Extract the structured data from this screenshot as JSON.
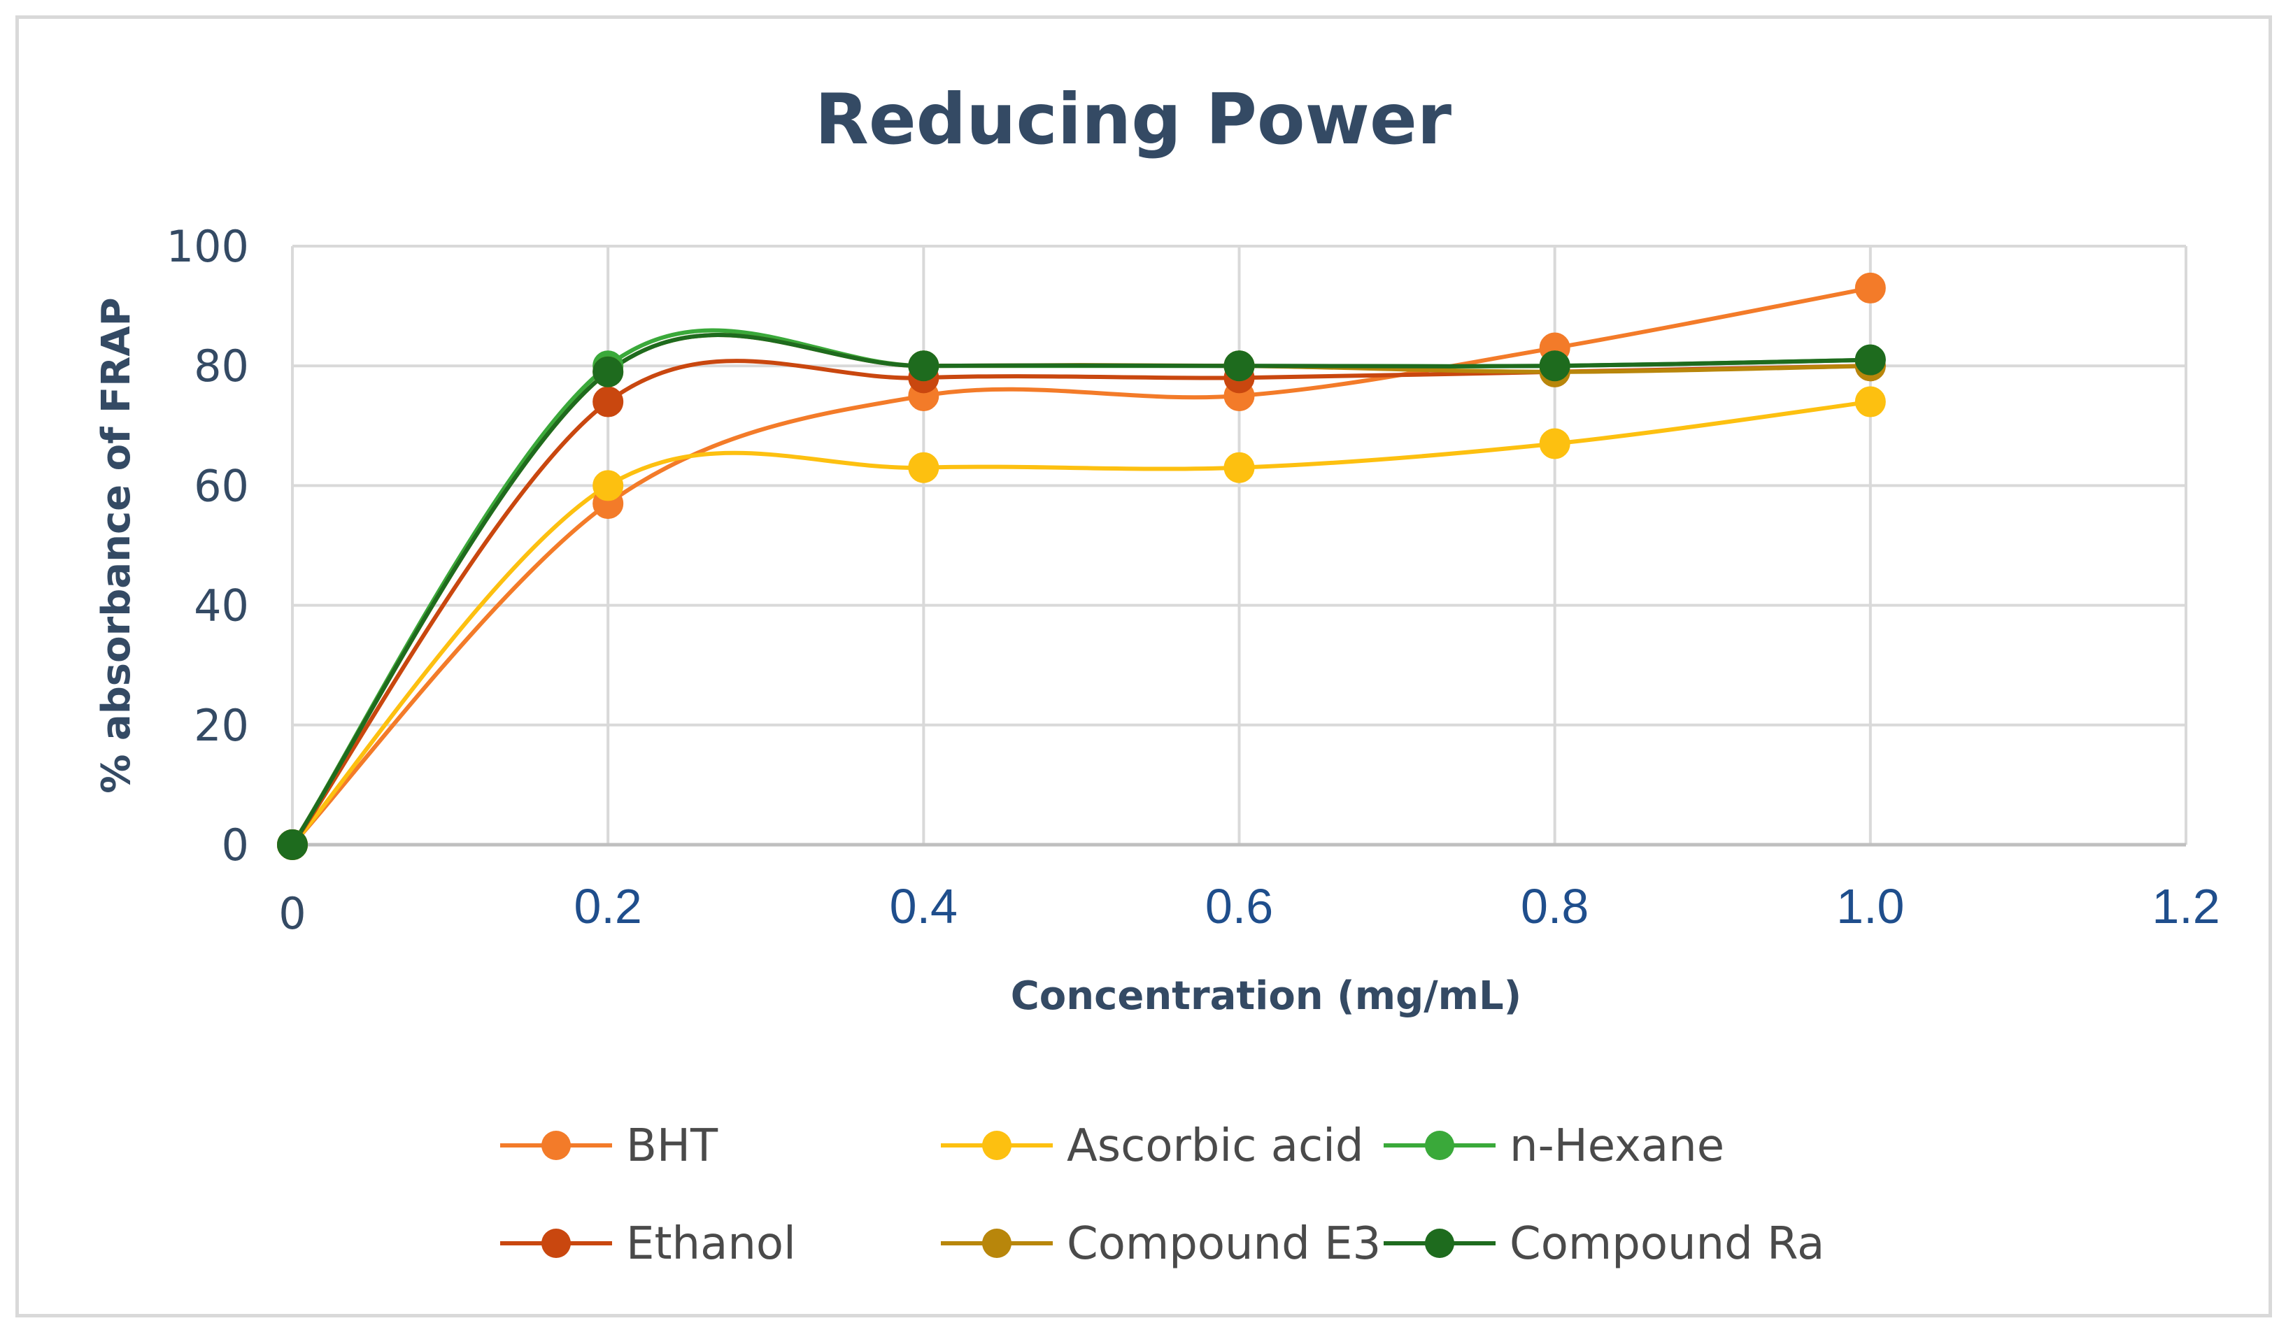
{
  "chart_data": {
    "type": "line",
    "title": "Reducing Power",
    "xlabel": "Concentration (mg/mL)",
    "ylabel": "% absorbance of FRAP",
    "xlim": [
      0,
      1.2
    ],
    "ylim": [
      0,
      100
    ],
    "x_ticks": [
      "0",
      "0.2",
      "0.4",
      "0.6",
      "0.8",
      "1.0",
      "1.2"
    ],
    "y_ticks": [
      "0",
      "20",
      "40",
      "60",
      "80",
      "100"
    ],
    "grid": true,
    "legend_position": "bottom",
    "x": [
      0,
      0.2,
      0.4,
      0.6,
      0.8,
      1.0
    ],
    "series": [
      {
        "name": "BHT",
        "color": "#f37b29",
        "values": [
          0,
          57,
          75,
          75,
          83,
          93
        ]
      },
      {
        "name": "Ascorbic acid",
        "color": "#fdc010",
        "values": [
          0,
          60,
          63,
          63,
          67,
          74
        ]
      },
      {
        "name": "n-Hexane",
        "color": "#3aa93a",
        "values": [
          0,
          80,
          80,
          80,
          80,
          81
        ]
      },
      {
        "name": "Ethanol",
        "color": "#c9470f",
        "values": [
          0,
          74,
          78,
          78,
          79,
          80
        ]
      },
      {
        "name": "Compound E3",
        "color": "#b8860b",
        "values": [
          0,
          79,
          80,
          80,
          79,
          80
        ]
      },
      {
        "name": "Compound Ra",
        "color": "#1e6b1e",
        "values": [
          0,
          79,
          80,
          80,
          80,
          81
        ]
      }
    ]
  }
}
